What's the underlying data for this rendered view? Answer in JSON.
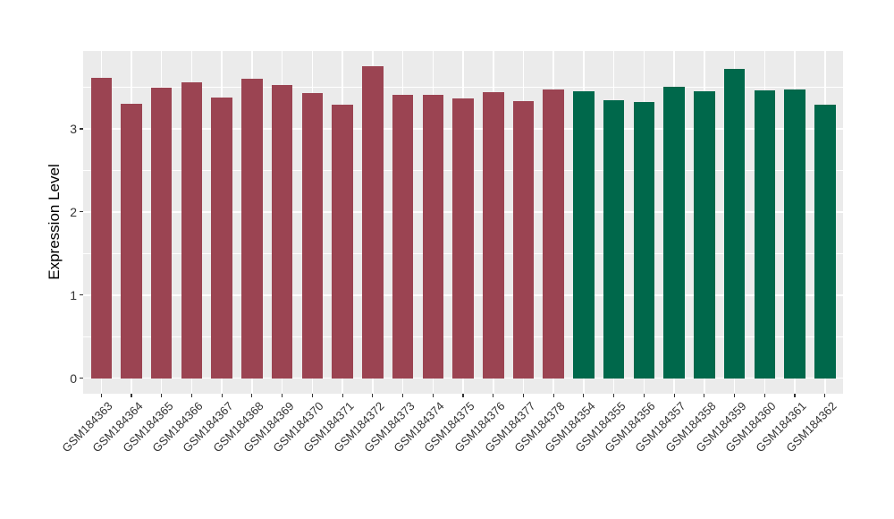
{
  "chart_data": {
    "type": "bar",
    "title": "",
    "ylabel": "Expression Level",
    "xlabel": "",
    "categories": [
      "GSM184363",
      "GSM184364",
      "GSM184365",
      "GSM184366",
      "GSM184367",
      "GSM184368",
      "GSM184369",
      "GSM184370",
      "GSM184371",
      "GSM184372",
      "GSM184373",
      "GSM184374",
      "GSM184375",
      "GSM184376",
      "GSM184377",
      "GSM184378",
      "GSM184354",
      "GSM184355",
      "GSM184356",
      "GSM184357",
      "GSM184358",
      "GSM184359",
      "GSM184360",
      "GSM184361",
      "GSM184362"
    ],
    "values": [
      3.61,
      3.3,
      3.5,
      3.56,
      3.38,
      3.6,
      3.53,
      3.43,
      3.29,
      3.75,
      3.41,
      3.41,
      3.37,
      3.44,
      3.33,
      3.47,
      3.45,
      3.34,
      3.32,
      3.51,
      3.45,
      3.72,
      3.46,
      3.47,
      3.29
    ],
    "bar_colors": [
      "#9B4452",
      "#9B4452",
      "#9B4452",
      "#9B4452",
      "#9B4452",
      "#9B4452",
      "#9B4452",
      "#9B4452",
      "#9B4452",
      "#9B4452",
      "#9B4452",
      "#9B4452",
      "#9B4452",
      "#9B4452",
      "#9B4452",
      "#9B4452",
      "#00684B",
      "#00684B",
      "#00684B",
      "#00684B",
      "#00684B",
      "#00684B",
      "#00684B",
      "#00684B",
      "#00684B"
    ],
    "ytick_labels": [
      "0",
      "1",
      "2",
      "3"
    ],
    "ytick_values": [
      0,
      1,
      2,
      3
    ],
    "yminor_values": [
      0.5,
      1.5,
      2.5,
      3.5
    ],
    "ylim": [
      -0.19,
      3.94
    ],
    "legend": "none",
    "grid": "on",
    "panel_bg": "#EBEBEB",
    "grid_color": "#FFFFFF",
    "axis_text_color": "#333333",
    "axis_title_color": "#000000"
  }
}
